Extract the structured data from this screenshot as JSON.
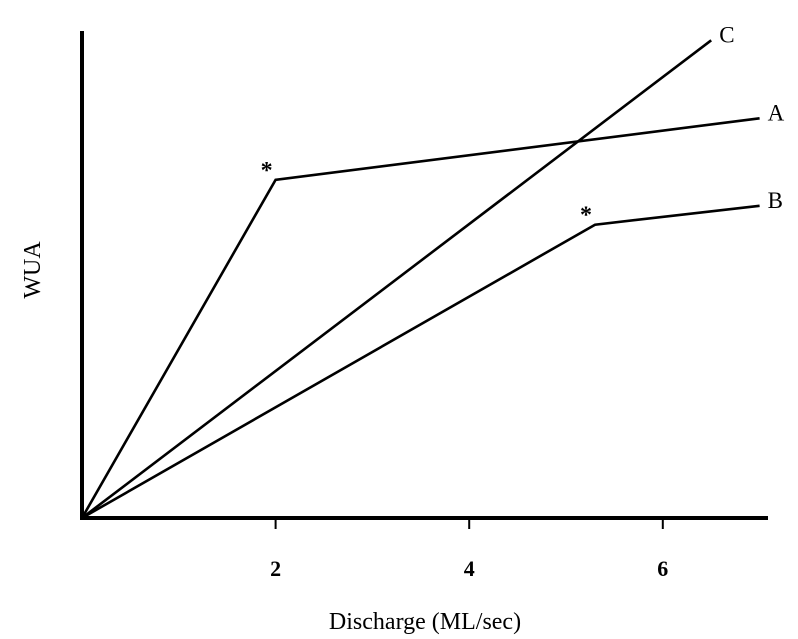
{
  "chart_data": {
    "type": "line",
    "xlabel": "Discharge (ML/sec)",
    "ylabel": "WUA",
    "xlim": [
      0,
      7
    ],
    "ylim": [
      0,
      10
    ],
    "x_ticks": [
      "2",
      "4",
      "6"
    ],
    "y_ticks": [],
    "grid": false,
    "legend": "none",
    "series": [
      {
        "name": "A",
        "x": [
          0,
          2,
          7
        ],
        "y": [
          0,
          7.15,
          8.45
        ],
        "marker": "*",
        "marker_at": 1
      },
      {
        "name": "B",
        "x": [
          0,
          5.3,
          7
        ],
        "y": [
          0,
          6.2,
          6.6
        ],
        "marker": "*",
        "marker_at": 1
      },
      {
        "name": "C",
        "x": [
          0,
          6.5
        ],
        "y": [
          0,
          10.1
        ],
        "marker": null,
        "marker_at": null
      }
    ]
  }
}
